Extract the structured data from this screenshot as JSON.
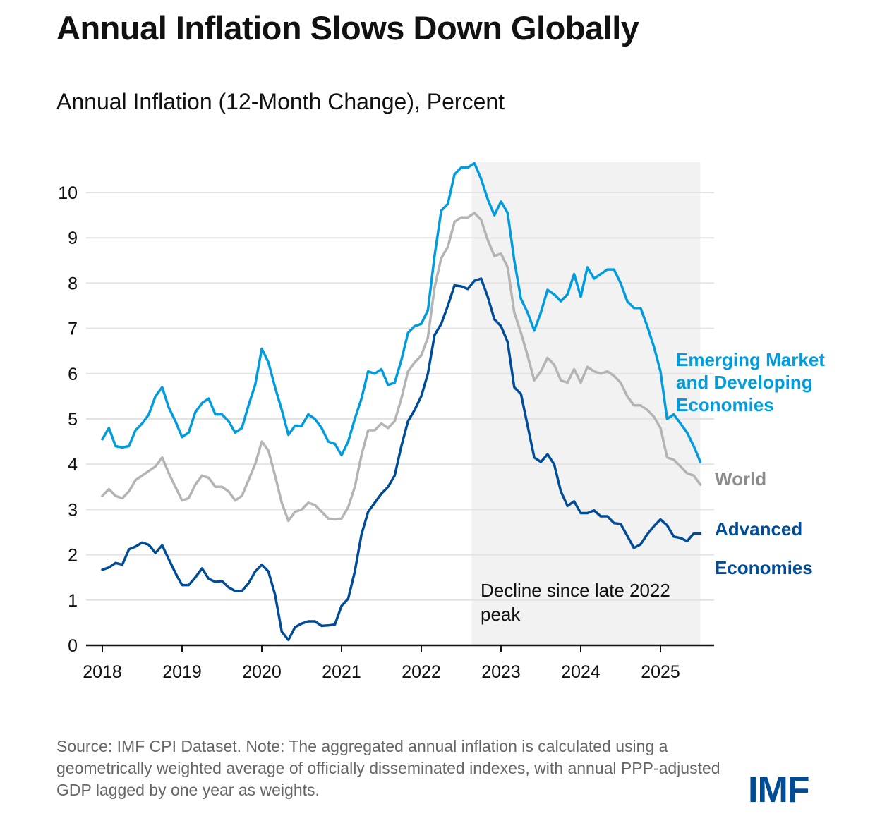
{
  "title": "Annual Inflation Slows Down Globally",
  "subtitle": "Annual Inflation (12-Month Change), Percent",
  "source": "Source: IMF CPI Dataset. Note: The aggregated annual inflation is calculated using a geometrically weighted average of officially disseminated indexes, with annual PPP-adjusted GDP lagged by one year as weights.",
  "logo": "IMF",
  "chart_data": {
    "type": "line",
    "title": "Annual Inflation (12-Month Change), Percent",
    "x_start": "2018-01",
    "x_frequency": "monthly",
    "x_ticks": [
      "2018",
      "2019",
      "2020",
      "2021",
      "2022",
      "2023",
      "2024",
      "2025"
    ],
    "y_ticks": [
      "0",
      "1",
      "2",
      "3",
      "4",
      "5",
      "6",
      "7",
      "8",
      "9",
      "10"
    ],
    "ylim": [
      0,
      10.7
    ],
    "grid": true,
    "legend": "direct labels at line ends (right)",
    "shaded_region": {
      "from": "2022-09",
      "to": "2025-07",
      "color": "#f2f2f2",
      "label": "Decline since late 2022 peak"
    },
    "series": [
      {
        "name": "Emerging Market and Developing Economies",
        "label_lines": [
          "Emerging Market",
          "and Developing",
          "Economies"
        ],
        "color": "#009cde",
        "values": [
          4.55,
          4.8,
          4.4,
          4.37,
          4.4,
          4.75,
          4.9,
          5.1,
          5.5,
          5.7,
          5.25,
          4.95,
          4.6,
          4.7,
          5.15,
          5.35,
          5.45,
          5.1,
          5.1,
          4.95,
          4.7,
          4.8,
          5.3,
          5.75,
          6.55,
          6.25,
          5.7,
          5.2,
          4.65,
          4.85,
          4.85,
          5.1,
          5.0,
          4.8,
          4.5,
          4.45,
          4.2,
          4.5,
          5.0,
          5.45,
          6.05,
          6.0,
          6.1,
          5.75,
          5.8,
          6.3,
          6.9,
          7.05,
          7.1,
          7.4,
          8.6,
          9.6,
          9.75,
          10.4,
          10.55,
          10.55,
          10.65,
          10.3,
          9.85,
          9.5,
          9.8,
          9.55,
          8.5,
          7.65,
          7.35,
          6.95,
          7.35,
          7.85,
          7.75,
          7.6,
          7.75,
          8.2,
          7.7,
          8.35,
          8.1,
          8.2,
          8.3,
          8.3,
          8.0,
          7.6,
          7.45,
          7.45,
          7.05,
          6.6,
          6.05,
          5.0,
          5.1,
          4.9,
          4.7,
          4.4,
          4.05
        ]
      },
      {
        "name": "World",
        "label_lines": [
          "World"
        ],
        "color": "#b4b4b4",
        "values": [
          3.3,
          3.45,
          3.3,
          3.25,
          3.4,
          3.65,
          3.75,
          3.85,
          3.95,
          4.15,
          3.8,
          3.5,
          3.2,
          3.25,
          3.55,
          3.75,
          3.7,
          3.5,
          3.5,
          3.4,
          3.2,
          3.3,
          3.65,
          4.0,
          4.5,
          4.3,
          3.75,
          3.15,
          2.75,
          2.95,
          3.0,
          3.15,
          3.1,
          2.95,
          2.8,
          2.78,
          2.8,
          3.05,
          3.5,
          4.2,
          4.75,
          4.75,
          4.9,
          4.8,
          4.95,
          5.45,
          6.05,
          6.25,
          6.4,
          6.8,
          7.9,
          8.55,
          8.8,
          9.35,
          9.45,
          9.45,
          9.55,
          9.4,
          8.95,
          8.6,
          8.65,
          8.35,
          7.35,
          6.9,
          6.4,
          5.85,
          6.05,
          6.35,
          6.2,
          5.85,
          5.8,
          6.1,
          5.8,
          6.15,
          6.05,
          6.0,
          6.05,
          5.95,
          5.8,
          5.5,
          5.3,
          5.3,
          5.2,
          5.05,
          4.8,
          4.15,
          4.1,
          3.95,
          3.8,
          3.75,
          3.55
        ]
      },
      {
        "name": "Advanced Economies",
        "label_lines": [
          "Advanced",
          "Economies"
        ],
        "color": "#004c97",
        "values": [
          1.67,
          1.72,
          1.82,
          1.78,
          2.12,
          2.18,
          2.27,
          2.22,
          2.04,
          2.21,
          1.9,
          1.6,
          1.33,
          1.33,
          1.5,
          1.7,
          1.47,
          1.4,
          1.42,
          1.28,
          1.2,
          1.2,
          1.37,
          1.63,
          1.78,
          1.63,
          1.12,
          0.3,
          0.12,
          0.4,
          0.48,
          0.53,
          0.53,
          0.43,
          0.44,
          0.46,
          0.87,
          1.03,
          1.63,
          2.45,
          2.95,
          3.15,
          3.35,
          3.5,
          3.75,
          4.4,
          4.95,
          5.2,
          5.5,
          6.0,
          6.85,
          7.1,
          7.5,
          7.95,
          7.93,
          7.87,
          8.05,
          8.1,
          7.7,
          7.2,
          7.05,
          6.7,
          5.7,
          5.55,
          4.85,
          4.15,
          4.05,
          4.22,
          4.0,
          3.4,
          3.08,
          3.18,
          2.92,
          2.92,
          2.98,
          2.85,
          2.85,
          2.7,
          2.68,
          2.42,
          2.15,
          2.23,
          2.45,
          2.63,
          2.78,
          2.65,
          2.4,
          2.37,
          2.3,
          2.47,
          2.47
        ]
      }
    ]
  }
}
